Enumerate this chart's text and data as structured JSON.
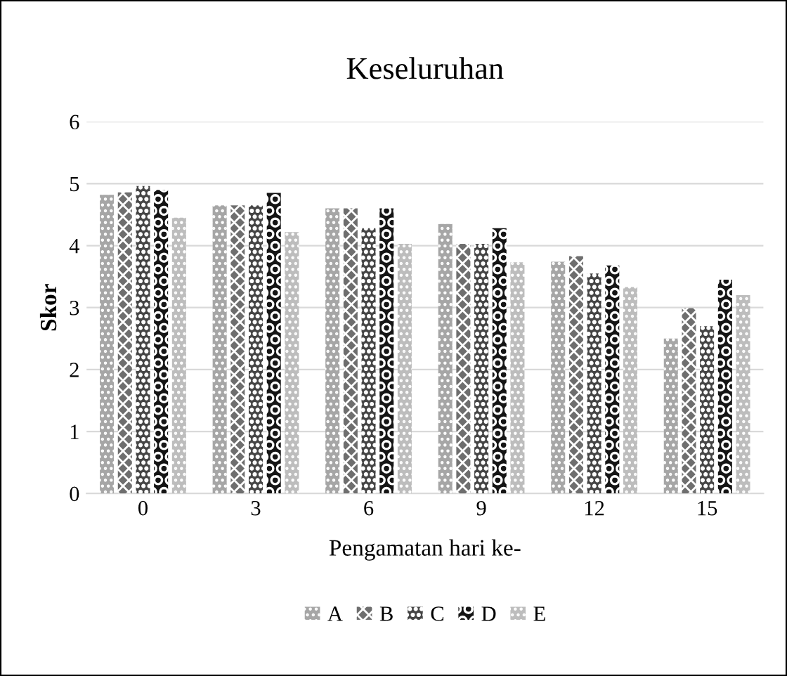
{
  "chart_data": {
    "type": "bar",
    "title": "Keseluruhan",
    "xlabel": "Pengamatan hari ke-",
    "ylabel": "Skor",
    "categories": [
      "0",
      "3",
      "6",
      "9",
      "12",
      "15"
    ],
    "series": [
      {
        "name": "A",
        "color": "#a6a6a6",
        "values": [
          4.82,
          4.65,
          4.6,
          4.35,
          3.74,
          2.5
        ]
      },
      {
        "name": "B",
        "color": "#6e6e6e",
        "values": [
          4.86,
          4.65,
          4.6,
          4.03,
          3.83,
          2.99
        ]
      },
      {
        "name": "C",
        "color": "#454545",
        "values": [
          4.96,
          4.65,
          4.28,
          4.03,
          3.55,
          2.7
        ]
      },
      {
        "name": "D",
        "color": "#151515",
        "values": [
          4.9,
          4.85,
          4.6,
          4.28,
          3.68,
          3.45
        ]
      },
      {
        "name": "E",
        "color": "#bdbdbd",
        "values": [
          4.45,
          4.22,
          4.03,
          3.73,
          3.33,
          3.2
        ]
      }
    ],
    "ylim": [
      0,
      6
    ],
    "yticks": [
      0,
      1,
      2,
      3,
      4,
      5,
      6
    ],
    "grid": "y",
    "legend": "bottom"
  }
}
